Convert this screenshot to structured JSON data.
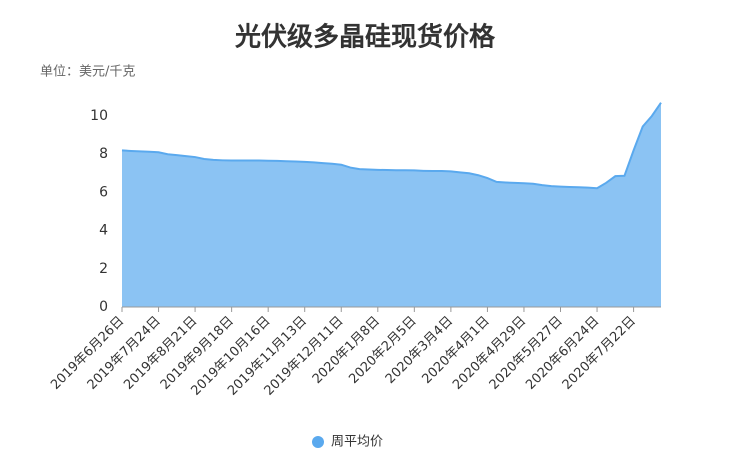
{
  "chart_data": {
    "type": "area",
    "title": "光伏级多晶硅现货价格",
    "unit_label": "单位：美元/千克",
    "categories": [
      "2019年6月26日",
      null,
      null,
      null,
      "2019年7月24日",
      null,
      null,
      null,
      "2019年8月21日",
      null,
      null,
      null,
      "2019年9月18日",
      null,
      null,
      null,
      "2019年10月16日",
      null,
      null,
      null,
      "2019年11月13日",
      null,
      null,
      null,
      "2019年12月11日",
      null,
      null,
      null,
      "2020年1月8日",
      null,
      null,
      null,
      "2020年2月5日",
      null,
      null,
      null,
      "2020年3月4日",
      null,
      null,
      null,
      "2020年4月1日",
      null,
      null,
      null,
      "2020年4月29日",
      null,
      null,
      null,
      "2020年5月27日",
      null,
      null,
      null,
      "2020年6月24日",
      null,
      null,
      null,
      "2020年7月22日",
      null,
      null,
      null
    ],
    "series": [
      {
        "name": "周平均价",
        "color": "#5aa9ee",
        "values": [
          8.2,
          8.17,
          8.15,
          8.13,
          8.1,
          8.0,
          7.95,
          7.9,
          7.85,
          7.75,
          7.7,
          7.68,
          7.67,
          7.67,
          7.67,
          7.67,
          7.66,
          7.65,
          7.63,
          7.62,
          7.6,
          7.57,
          7.53,
          7.5,
          7.45,
          7.3,
          7.22,
          7.2,
          7.18,
          7.17,
          7.16,
          7.16,
          7.15,
          7.13,
          7.12,
          7.12,
          7.1,
          7.05,
          7.0,
          6.9,
          6.75,
          6.55,
          6.52,
          6.5,
          6.48,
          6.45,
          6.38,
          6.33,
          6.3,
          6.28,
          6.27,
          6.25,
          6.22,
          6.5,
          6.85,
          6.87,
          8.2,
          9.45,
          10.0,
          10.7
        ]
      }
    ],
    "ylim": [
      0,
      11
    ],
    "yticks": [
      0,
      2,
      4,
      6,
      8,
      10
    ],
    "grid": false,
    "legend": "bottom"
  }
}
